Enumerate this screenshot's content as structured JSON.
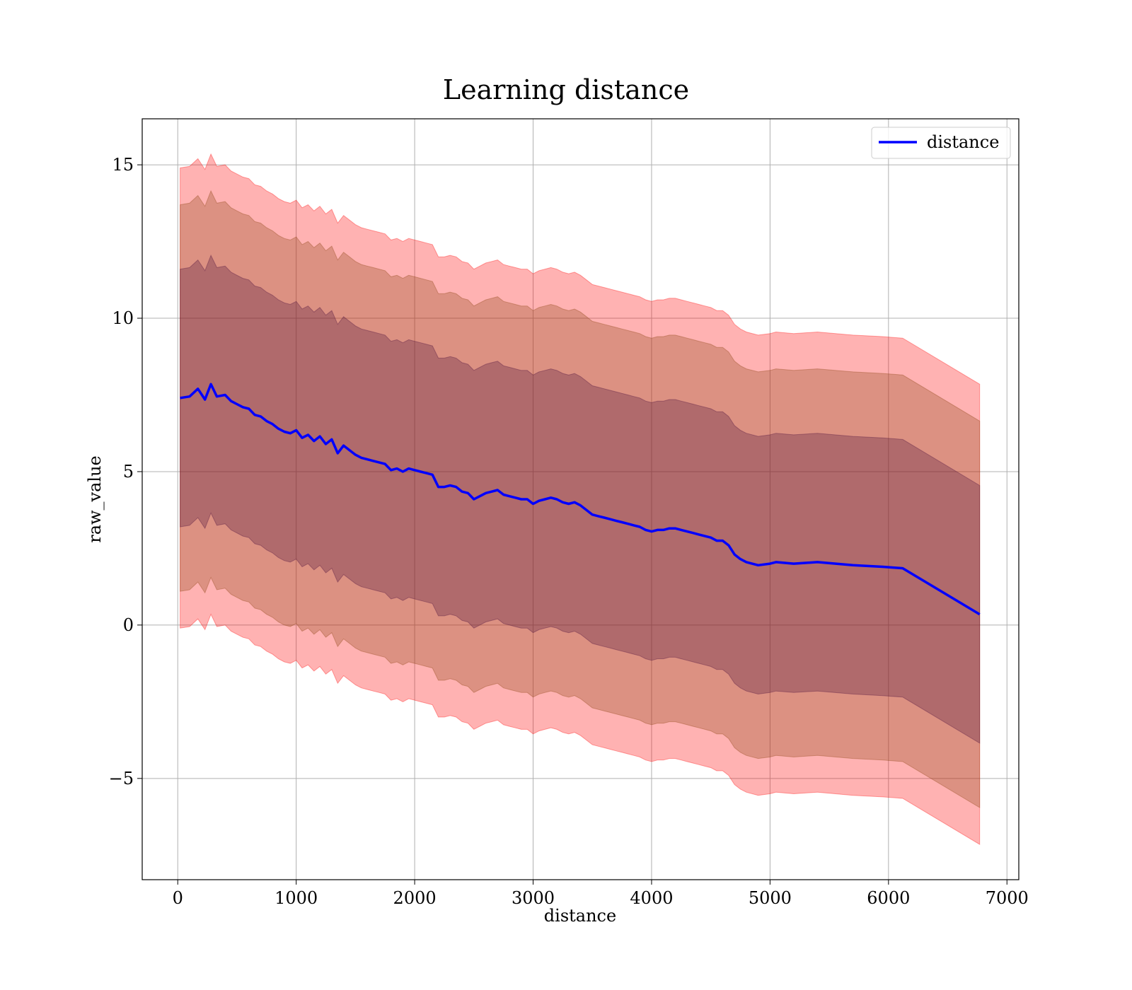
{
  "chart_data": {
    "type": "line",
    "title": "Learning distance",
    "xlabel": "distance",
    "ylabel": "raw_value",
    "xlim": [
      -300,
      7100
    ],
    "ylim": [
      -8.3,
      16.5
    ],
    "xticks": [
      0,
      1000,
      2000,
      3000,
      4000,
      5000,
      6000,
      7000
    ],
    "yticks": [
      -5,
      0,
      5,
      10,
      15
    ],
    "x_tick_labels": [
      "0",
      "1000",
      "2000",
      "3000",
      "4000",
      "5000",
      "6000",
      "7000"
    ],
    "y_tick_labels": [
      "−5",
      "0",
      "5",
      "10",
      "15"
    ],
    "grid": true,
    "legend_position": "top-right",
    "colors": {
      "line": "#0000ff",
      "band_outer": "#ff0000",
      "band_middle": "#8b4513",
      "band_inner": "#4b0f3c"
    },
    "series": [
      {
        "name": "distance",
        "x": [
          20,
          100,
          170,
          230,
          280,
          330,
          400,
          450,
          500,
          550,
          600,
          650,
          700,
          750,
          800,
          850,
          900,
          950,
          1000,
          1050,
          1100,
          1150,
          1200,
          1250,
          1300,
          1350,
          1400,
          1450,
          1500,
          1550,
          1600,
          1650,
          1700,
          1750,
          1800,
          1850,
          1900,
          1950,
          2000,
          2050,
          2100,
          2150,
          2200,
          2250,
          2300,
          2350,
          2400,
          2450,
          2500,
          2550,
          2600,
          2650,
          2700,
          2750,
          2800,
          2850,
          2900,
          2950,
          3000,
          3050,
          3100,
          3150,
          3200,
          3250,
          3300,
          3350,
          3400,
          3450,
          3500,
          3550,
          3600,
          3650,
          3700,
          3750,
          3800,
          3850,
          3900,
          3950,
          4000,
          4050,
          4100,
          4150,
          4200,
          4250,
          4300,
          4350,
          4400,
          4450,
          4500,
          4550,
          4600,
          4650,
          4700,
          4750,
          4800,
          4900,
          5000,
          5050,
          5200,
          5400,
          5700,
          5950,
          6120,
          6770
        ],
        "values": [
          7.4,
          7.45,
          7.7,
          7.35,
          7.85,
          7.45,
          7.5,
          7.3,
          7.2,
          7.1,
          7.05,
          6.85,
          6.8,
          6.65,
          6.55,
          6.4,
          6.3,
          6.25,
          6.35,
          6.1,
          6.2,
          6.0,
          6.15,
          5.9,
          6.05,
          5.6,
          5.85,
          5.7,
          5.55,
          5.45,
          5.4,
          5.35,
          5.3,
          5.25,
          5.05,
          5.1,
          5.0,
          5.1,
          5.05,
          5.0,
          4.95,
          4.9,
          4.5,
          4.5,
          4.55,
          4.5,
          4.35,
          4.3,
          4.1,
          4.2,
          4.3,
          4.35,
          4.4,
          4.25,
          4.2,
          4.15,
          4.1,
          4.1,
          3.95,
          4.05,
          4.1,
          4.15,
          4.1,
          4.0,
          3.95,
          4.0,
          3.9,
          3.75,
          3.6,
          3.55,
          3.5,
          3.45,
          3.4,
          3.35,
          3.3,
          3.25,
          3.2,
          3.1,
          3.05,
          3.1,
          3.1,
          3.15,
          3.15,
          3.1,
          3.05,
          3.0,
          2.95,
          2.9,
          2.85,
          2.75,
          2.75,
          2.6,
          2.3,
          2.15,
          2.05,
          1.95,
          2.0,
          2.05,
          2.0,
          2.05,
          1.95,
          1.9,
          1.85,
          0.35
        ]
      }
    ],
    "bands": [
      {
        "offset": 7.5,
        "color_key": "band_outer"
      },
      {
        "offset": 6.3,
        "color_key": "band_middle"
      },
      {
        "offset": 4.2,
        "color_key": "band_inner"
      }
    ],
    "legend": [
      {
        "label": "distance",
        "color": "#0000ff"
      }
    ]
  }
}
